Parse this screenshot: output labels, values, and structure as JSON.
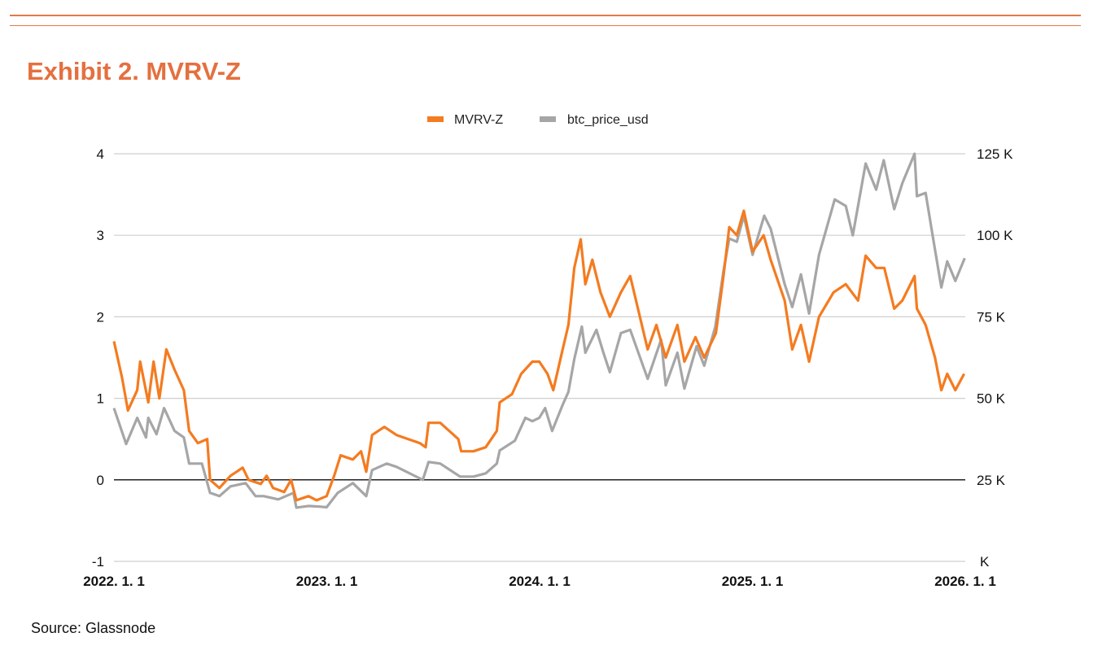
{
  "title": "Exhibit 2. MVRV-Z",
  "source": "Source: Glassnode",
  "chart_data": {
    "type": "line",
    "title": "Exhibit 2. MVRV-Z",
    "legend_position": "top-center",
    "grid": true,
    "x_range": [
      "2022-01-01",
      "2026-01-01"
    ],
    "x_ticks": [
      "2022. 1. 1",
      "2023. 1. 1",
      "2024. 1. 1",
      "2025. 1. 1",
      "2026. 1. 1"
    ],
    "y_left": {
      "range": [
        -1,
        4
      ],
      "ticks": [
        "-1",
        "0",
        "1",
        "2",
        "3",
        "4"
      ]
    },
    "y_right": {
      "range": [
        0,
        125000
      ],
      "ticks": [
        "K",
        "25 K",
        "50 K",
        "75 K",
        "100 K",
        "125 K"
      ]
    },
    "series": [
      {
        "name": "MVRV-Z",
        "axis": "left",
        "color": "#F47B20",
        "x": [
          "2022-01-01",
          "2022-01-15",
          "2022-01-25",
          "2022-02-10",
          "2022-02-15",
          "2022-03-01",
          "2022-03-10",
          "2022-03-20",
          "2022-04-01",
          "2022-04-15",
          "2022-05-01",
          "2022-05-10",
          "2022-05-25",
          "2022-06-10",
          "2022-06-15",
          "2022-07-01",
          "2022-07-20",
          "2022-08-10",
          "2022-08-20",
          "2022-09-10",
          "2022-09-20",
          "2022-10-01",
          "2022-10-20",
          "2022-11-01",
          "2022-11-10",
          "2022-12-01",
          "2022-12-15",
          "2023-01-01",
          "2023-01-14",
          "2023-01-25",
          "2023-02-15",
          "2023-03-01",
          "2023-03-10",
          "2023-03-20",
          "2023-04-10",
          "2023-05-01",
          "2023-06-10",
          "2023-06-20",
          "2023-06-25",
          "2023-07-15",
          "2023-08-15",
          "2023-08-20",
          "2023-09-10",
          "2023-10-01",
          "2023-10-20",
          "2023-10-25",
          "2023-11-15",
          "2023-12-01",
          "2023-12-20",
          "2024-01-01",
          "2024-01-15",
          "2024-01-25",
          "2024-02-10",
          "2024-02-20",
          "2024-03-01",
          "2024-03-12",
          "2024-03-20",
          "2024-04-01",
          "2024-04-15",
          "2024-05-01",
          "2024-05-20",
          "2024-06-05",
          "2024-06-25",
          "2024-07-05",
          "2024-07-20",
          "2024-08-05",
          "2024-08-25",
          "2024-09-06",
          "2024-09-25",
          "2024-10-10",
          "2024-10-30",
          "2024-11-12",
          "2024-11-22",
          "2024-12-05",
          "2024-12-17",
          "2025-01-01",
          "2025-01-20",
          "2025-02-01",
          "2025-02-25",
          "2025-03-10",
          "2025-03-25",
          "2025-04-08",
          "2025-04-25",
          "2025-05-20",
          "2025-06-10",
          "2025-07-01",
          "2025-07-14",
          "2025-08-01",
          "2025-08-15",
          "2025-09-01",
          "2025-09-15",
          "2025-10-06",
          "2025-10-10",
          "2025-10-25",
          "2025-11-10",
          "2025-11-21",
          "2025-12-01",
          "2025-12-15",
          "2025-12-30"
        ],
        "values": [
          1.7,
          1.25,
          0.85,
          1.1,
          1.45,
          0.95,
          1.45,
          1.0,
          1.6,
          1.35,
          1.1,
          0.6,
          0.45,
          0.5,
          0.0,
          -0.1,
          0.05,
          0.15,
          0.0,
          -0.05,
          0.05,
          -0.1,
          -0.15,
          0.0,
          -0.25,
          -0.2,
          -0.25,
          -0.2,
          0.05,
          0.3,
          0.25,
          0.35,
          0.1,
          0.55,
          0.65,
          0.55,
          0.45,
          0.4,
          0.7,
          0.7,
          0.5,
          0.35,
          0.35,
          0.4,
          0.6,
          0.95,
          1.05,
          1.3,
          1.45,
          1.45,
          1.3,
          1.1,
          1.6,
          1.9,
          2.6,
          2.95,
          2.4,
          2.7,
          2.3,
          2.0,
          2.3,
          2.5,
          1.9,
          1.6,
          1.9,
          1.5,
          1.9,
          1.45,
          1.75,
          1.5,
          1.8,
          2.5,
          3.1,
          3.0,
          3.3,
          2.8,
          3.0,
          2.7,
          2.2,
          1.6,
          1.9,
          1.45,
          2.0,
          2.3,
          2.4,
          2.2,
          2.75,
          2.6,
          2.6,
          2.1,
          2.2,
          2.5,
          2.1,
          1.9,
          1.5,
          1.1,
          1.3,
          1.1,
          1.3
        ]
      },
      {
        "name": "btc_price_usd",
        "axis": "right",
        "color": "#A6A6A6",
        "x": [
          "2022-01-01",
          "2022-01-22",
          "2022-02-10",
          "2022-02-25",
          "2022-03-01",
          "2022-03-15",
          "2022-03-28",
          "2022-04-15",
          "2022-05-01",
          "2022-05-10",
          "2022-06-01",
          "2022-06-15",
          "2022-07-01",
          "2022-07-20",
          "2022-08-15",
          "2022-09-01",
          "2022-09-15",
          "2022-10-10",
          "2022-11-05",
          "2022-11-10",
          "2022-12-01",
          "2022-12-20",
          "2023-01-01",
          "2023-01-20",
          "2023-02-15",
          "2023-03-10",
          "2023-03-20",
          "2023-04-14",
          "2023-05-01",
          "2023-06-15",
          "2023-06-25",
          "2023-07-15",
          "2023-08-18",
          "2023-09-10",
          "2023-10-01",
          "2023-10-20",
          "2023-10-25",
          "2023-11-20",
          "2023-12-08",
          "2023-12-20",
          "2024-01-01",
          "2024-01-11",
          "2024-01-23",
          "2024-02-10",
          "2024-02-20",
          "2024-03-01",
          "2024-03-14",
          "2024-03-20",
          "2024-04-08",
          "2024-04-20",
          "2024-05-01",
          "2024-05-20",
          "2024-06-05",
          "2024-06-25",
          "2024-07-05",
          "2024-07-28",
          "2024-08-05",
          "2024-08-25",
          "2024-09-06",
          "2024-09-27",
          "2024-10-10",
          "2024-10-29",
          "2024-11-12",
          "2024-11-22",
          "2024-12-05",
          "2024-12-17",
          "2025-01-01",
          "2025-01-21",
          "2025-02-01",
          "2025-02-25",
          "2025-03-10",
          "2025-03-25",
          "2025-04-08",
          "2025-04-25",
          "2025-05-22",
          "2025-06-10",
          "2025-06-22",
          "2025-07-14",
          "2025-08-01",
          "2025-08-14",
          "2025-09-01",
          "2025-09-15",
          "2025-10-06",
          "2025-10-10",
          "2025-10-25",
          "2025-11-05",
          "2025-11-21",
          "2025-12-01",
          "2025-12-15",
          "2025-12-31"
        ],
        "values": [
          47000,
          36000,
          44000,
          38000,
          44000,
          39000,
          47000,
          40000,
          38000,
          30000,
          30000,
          21000,
          20000,
          23000,
          24000,
          20000,
          20000,
          19000,
          21000,
          16500,
          17000,
          16800,
          16600,
          21000,
          24000,
          20000,
          28000,
          30000,
          29000,
          25000,
          30500,
          30000,
          26000,
          26000,
          27000,
          30000,
          34000,
          37000,
          44000,
          43000,
          44000,
          47000,
          40000,
          48000,
          52000,
          62000,
          72000,
          64000,
          71000,
          64000,
          58000,
          70000,
          71000,
          61000,
          56000,
          68000,
          54000,
          64000,
          53000,
          66000,
          60000,
          72000,
          89000,
          99000,
          98000,
          106000,
          94000,
          106000,
          102000,
          85000,
          78000,
          88000,
          76000,
          94000,
          111000,
          109000,
          100000,
          122000,
          114000,
          123000,
          108000,
          116000,
          125000,
          112000,
          113000,
          101000,
          84000,
          92000,
          86000,
          93000
        ]
      }
    ]
  }
}
